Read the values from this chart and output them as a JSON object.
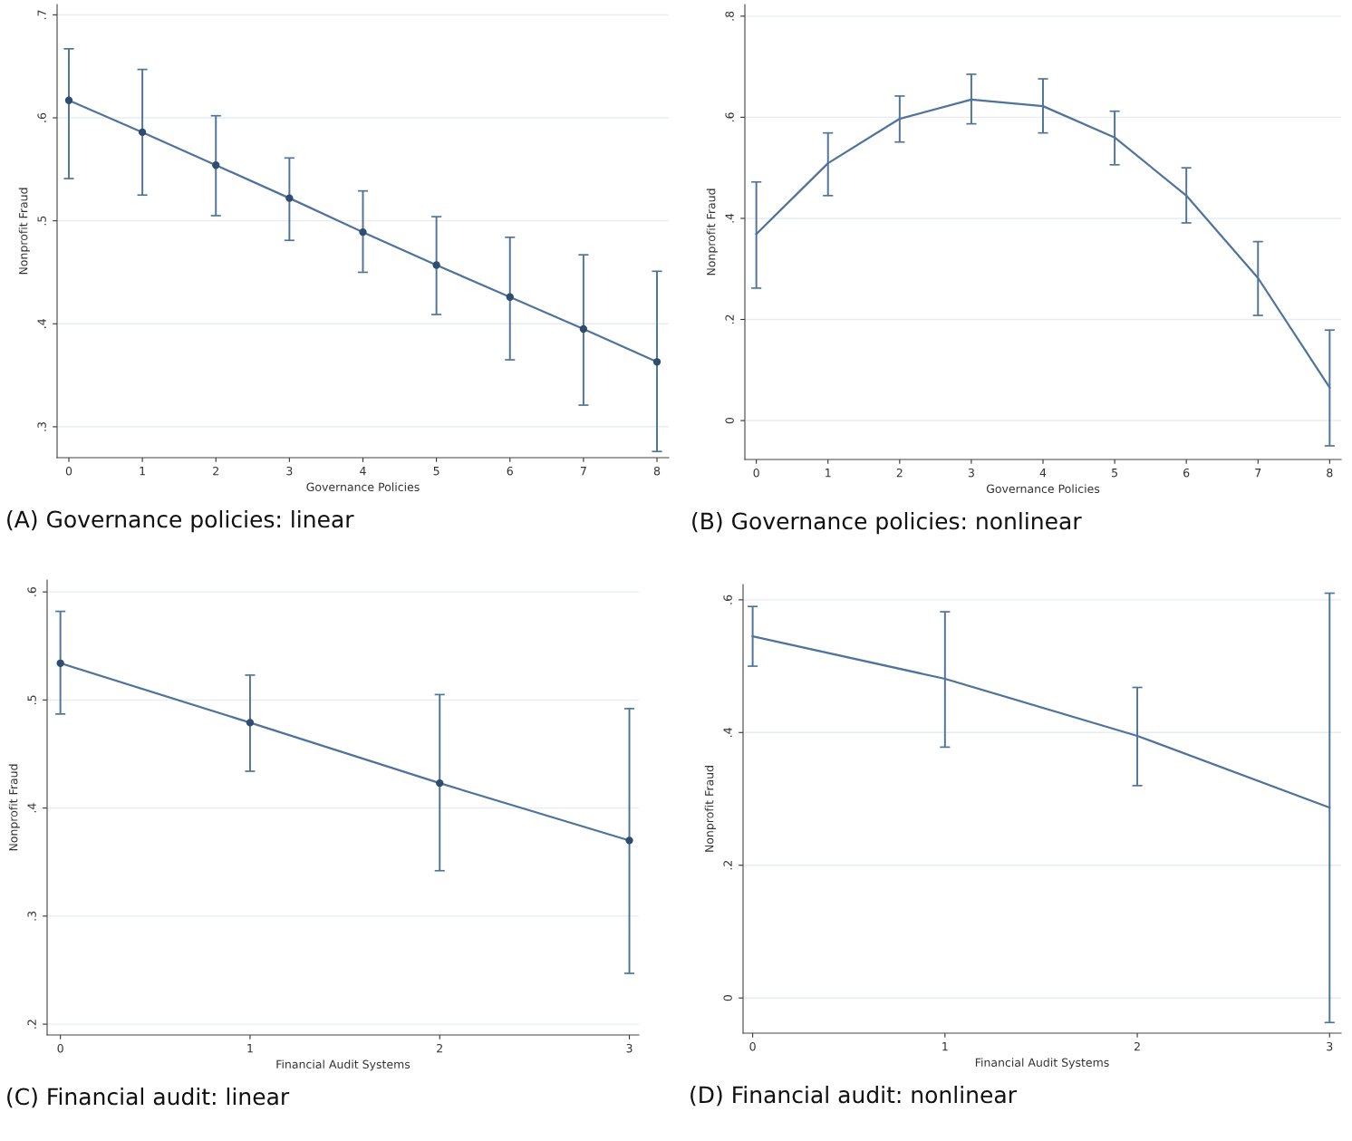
{
  "chart_data": [
    {
      "type": "line",
      "title": "(A) Governance policies: linear",
      "xlabel": "Governance Policies",
      "ylabel": "Nonprofit Fraud",
      "x": [
        0,
        1,
        2,
        3,
        4,
        5,
        6,
        7,
        8
      ],
      "marker": "circle",
      "grid": "y",
      "xlim": [
        -0.16,
        8.16
      ],
      "xticks": [
        0,
        1,
        2,
        3,
        4,
        5,
        6,
        7,
        8
      ],
      "ylim": [
        0.27,
        0.71
      ],
      "yticks": [
        {
          "value": 0.3,
          "label": ".3"
        },
        {
          "value": 0.4,
          "label": ".4"
        },
        {
          "value": 0.5,
          "label": ".5"
        },
        {
          "value": 0.6,
          "label": ".6"
        },
        {
          "value": 0.7,
          "label": ".7"
        }
      ],
      "series": [
        {
          "color": "#4f739b",
          "values": [
            0.617,
            0.586,
            0.554,
            0.522,
            0.489,
            0.457,
            0.426,
            0.395,
            0.363
          ],
          "errors": [
            [
              0.541,
              0.667
            ],
            [
              0.525,
              0.647
            ],
            [
              0.505,
              0.602
            ],
            [
              0.481,
              0.561
            ],
            [
              0.45,
              0.529
            ],
            [
              0.409,
              0.504
            ],
            [
              0.365,
              0.484
            ],
            [
              0.321,
              0.467
            ],
            [
              0.276,
              0.451
            ]
          ]
        }
      ]
    },
    {
      "type": "line",
      "title": "(B) Governance policies: nonlinear",
      "xlabel": "Governance Policies",
      "ylabel": "Nonprofit Fraud",
      "x": [
        0,
        1,
        2,
        3,
        4,
        5,
        6,
        7,
        8
      ],
      "grid": "y",
      "xlim": [
        -0.16,
        8.16
      ],
      "xticks": [
        0,
        1,
        2,
        3,
        4,
        5,
        6,
        7,
        8
      ],
      "ylim": [
        -0.077,
        0.823
      ],
      "yticks": [
        0,
        {
          "value": 0.2,
          "label": ".2"
        },
        {
          "value": 0.4,
          "label": ".4"
        },
        {
          "value": 0.6,
          "label": ".6"
        },
        {
          "value": 0.8,
          "label": ".8"
        }
      ],
      "series": [
        {
          "color": "#4f739b",
          "values": [
            0.369,
            0.509,
            0.597,
            0.635,
            0.622,
            0.56,
            0.445,
            0.282,
            0.065
          ],
          "errors": [
            [
              0.262,
              0.472
            ],
            [
              0.445,
              0.569
            ],
            [
              0.551,
              0.642
            ],
            [
              0.587,
              0.685
            ],
            [
              0.569,
              0.676
            ],
            [
              0.506,
              0.612
            ],
            [
              0.391,
              0.5
            ],
            [
              0.208,
              0.354
            ],
            [
              -0.05,
              0.179
            ]
          ]
        }
      ]
    },
    {
      "type": "line",
      "title": "(C) Financial audit: linear",
      "xlabel": "Financial Audit Systems",
      "ylabel": "Nonprofit Fraud",
      "x": [
        0,
        1,
        2,
        3
      ],
      "marker": "circle",
      "grid": "y",
      "xlim": [
        -0.07,
        3.05
      ],
      "xticks": [
        0,
        1,
        2,
        3
      ],
      "ylim": [
        0.19,
        0.611
      ],
      "yticks": [
        {
          "value": 0.2,
          "label": ".2"
        },
        {
          "value": 0.3,
          "label": ".3"
        },
        {
          "value": 0.4,
          "label": ".4"
        },
        {
          "value": 0.5,
          "label": ".5"
        },
        {
          "value": 0.6,
          "label": ".6"
        }
      ],
      "series": [
        {
          "color": "#4f739b",
          "values": [
            0.534,
            0.479,
            0.423,
            0.37
          ],
          "errors": [
            [
              0.487,
              0.582
            ],
            [
              0.434,
              0.523
            ],
            [
              0.342,
              0.505
            ],
            [
              0.247,
              0.492
            ]
          ]
        }
      ]
    },
    {
      "type": "line",
      "title": "(D) Financial audit: nonlinear",
      "xlabel": "Financial Audit Systems",
      "ylabel": "Nonprofit Fraud",
      "x": [
        0,
        1,
        2,
        3
      ],
      "grid": "y",
      "xlim": [
        -0.05,
        3.06
      ],
      "xticks": [
        0,
        1,
        2,
        3
      ],
      "ylim": [
        -0.053,
        0.623
      ],
      "yticks": [
        0,
        {
          "value": 0.2,
          "label": ".2"
        },
        {
          "value": 0.4,
          "label": ".4"
        },
        {
          "value": 0.6,
          "label": ".6"
        }
      ],
      "series": [
        {
          "color": "#4f739b",
          "values": [
            0.545,
            0.481,
            0.395,
            0.287
          ],
          "errors": [
            [
              0.5,
              0.59
            ],
            [
              0.378,
              0.582
            ],
            [
              0.32,
              0.468
            ],
            [
              -0.037,
              0.61
            ]
          ]
        }
      ]
    }
  ]
}
